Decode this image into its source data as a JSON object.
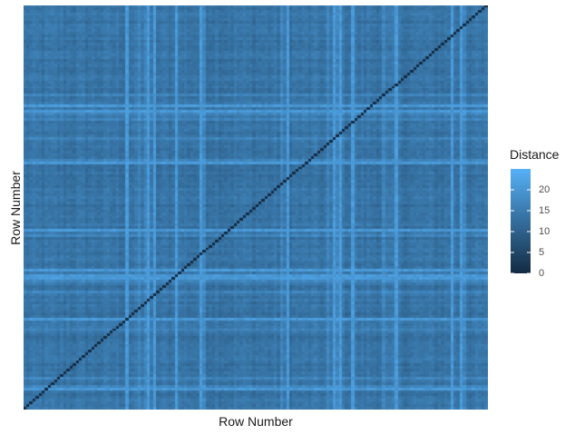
{
  "chart_data": {
    "type": "heatmap",
    "title": "",
    "xlabel": "Row Number",
    "ylabel": "Row Number",
    "n_rows": 150,
    "diagonal_value": 0,
    "value_range": [
      0,
      25
    ],
    "colorscale": {
      "low": "#132b43",
      "high": "#56b1f7"
    },
    "bright_columns": [
      33,
      40,
      42,
      49,
      57,
      85,
      100,
      102,
      106,
      120,
      138,
      141
    ],
    "bright_rows": [
      37,
      39,
      58,
      83,
      98,
      100,
      101,
      116,
      142
    ],
    "legend": {
      "title": "Distance",
      "ticks": [
        0,
        5,
        10,
        15,
        20
      ],
      "tick_labels": [
        "0",
        "5",
        "10",
        "15",
        "20"
      ],
      "position": "right"
    },
    "grid": false
  }
}
